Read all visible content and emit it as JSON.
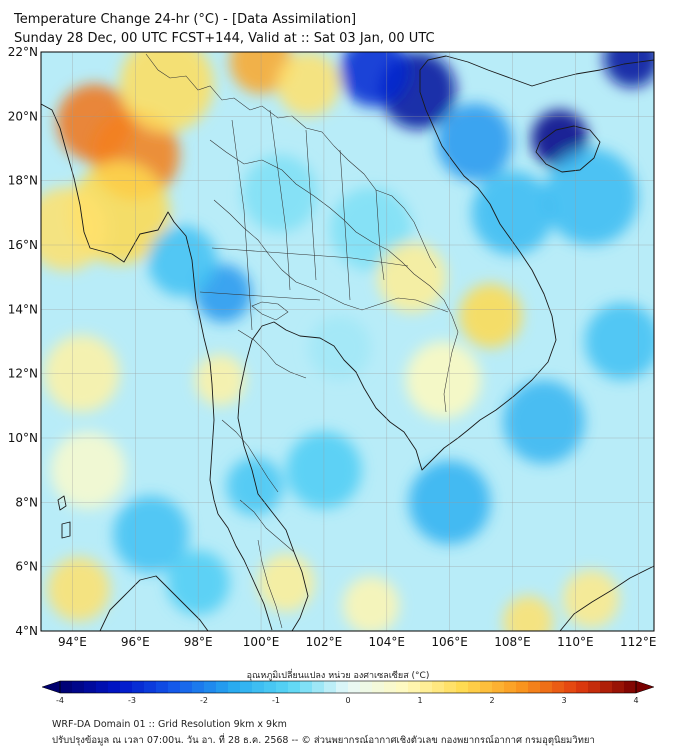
{
  "header": {
    "title_line1": "Temperature Change 24-hr (°C) - [Data Assimilation]",
    "title_line2": "Sunday 28 Dec, 00 UTC FCST+144, Valid at :: Sat 03 Jan, 00 UTC"
  },
  "map": {
    "lat_range": [
      4,
      22
    ],
    "lon_range": [
      93,
      112.5
    ],
    "lat_ticks": [
      4,
      6,
      8,
      10,
      12,
      14,
      16,
      18,
      20,
      22
    ],
    "lat_labels": [
      "4°N",
      "6°N",
      "8°N",
      "10°N",
      "12°N",
      "14°N",
      "16°N",
      "18°N",
      "20°N",
      "22°N"
    ],
    "lon_ticks": [
      94,
      96,
      98,
      100,
      102,
      104,
      106,
      108,
      110,
      112
    ],
    "lon_labels": [
      "94°E",
      "96°E",
      "98°E",
      "100°E",
      "102°E",
      "104°E",
      "106°E",
      "108°E",
      "110°E",
      "112°E"
    ],
    "field_anomalies": [
      {
        "lon": 94.7,
        "lat": 19.8,
        "value": 2.7,
        "spread": 1.2
      },
      {
        "lon": 96.0,
        "lat": 18.8,
        "value": 2.6,
        "spread": 1.4
      },
      {
        "lon": 95.5,
        "lat": 17.0,
        "value": 1.6,
        "spread": 1.6
      },
      {
        "lon": 97.0,
        "lat": 21.0,
        "value": 1.5,
        "spread": 1.5
      },
      {
        "lon": 100.0,
        "lat": 21.7,
        "value": 2.2,
        "spread": 1.0
      },
      {
        "lon": 101.5,
        "lat": 21.0,
        "value": 1.4,
        "spread": 1.0
      },
      {
        "lon": 93.8,
        "lat": 16.5,
        "value": 1.4,
        "spread": 1.3
      },
      {
        "lon": 105.0,
        "lat": 20.8,
        "value": -3.6,
        "spread": 1.2
      },
      {
        "lon": 103.6,
        "lat": 21.4,
        "value": -3.0,
        "spread": 1.1
      },
      {
        "lon": 109.5,
        "lat": 19.3,
        "value": -3.8,
        "spread": 0.9
      },
      {
        "lon": 111.8,
        "lat": 21.8,
        "value": -3.6,
        "spread": 0.9
      },
      {
        "lon": 106.8,
        "lat": 19.2,
        "value": -1.8,
        "spread": 1.2
      },
      {
        "lon": 108.0,
        "lat": 17.0,
        "value": -1.3,
        "spread": 1.3
      },
      {
        "lon": 110.5,
        "lat": 17.5,
        "value": -1.3,
        "spread": 1.5
      },
      {
        "lon": 98.8,
        "lat": 14.5,
        "value": -1.8,
        "spread": 0.9
      },
      {
        "lon": 97.5,
        "lat": 15.5,
        "value": -1.2,
        "spread": 1.1
      },
      {
        "lon": 100.6,
        "lat": 17.6,
        "value": -0.6,
        "spread": 1.2
      },
      {
        "lon": 103.5,
        "lat": 16.5,
        "value": -0.6,
        "spread": 1.3
      },
      {
        "lon": 104.8,
        "lat": 15.0,
        "value": 1.1,
        "spread": 1.1
      },
      {
        "lon": 107.3,
        "lat": 13.8,
        "value": 1.6,
        "spread": 1.0
      },
      {
        "lon": 105.8,
        "lat": 11.8,
        "value": 0.8,
        "spread": 1.2
      },
      {
        "lon": 98.7,
        "lat": 11.8,
        "value": 1.0,
        "spread": 0.8
      },
      {
        "lon": 94.3,
        "lat": 12.0,
        "value": 1.0,
        "spread": 1.2
      },
      {
        "lon": 94.5,
        "lat": 9.0,
        "value": 0.6,
        "spread": 1.2
      },
      {
        "lon": 94.2,
        "lat": 5.3,
        "value": 1.4,
        "spread": 1.0
      },
      {
        "lon": 96.5,
        "lat": 7.0,
        "value": -1.2,
        "spread": 1.2
      },
      {
        "lon": 98.0,
        "lat": 5.5,
        "value": -1.0,
        "spread": 1.0
      },
      {
        "lon": 100.8,
        "lat": 5.5,
        "value": 1.1,
        "spread": 0.9
      },
      {
        "lon": 103.5,
        "lat": 4.8,
        "value": 0.9,
        "spread": 0.9
      },
      {
        "lon": 108.5,
        "lat": 4.3,
        "value": 1.4,
        "spread": 0.8
      },
      {
        "lon": 110.5,
        "lat": 5.0,
        "value": 1.2,
        "spread": 0.9
      },
      {
        "lon": 106.0,
        "lat": 8.0,
        "value": -1.5,
        "spread": 1.3
      },
      {
        "lon": 109.0,
        "lat": 10.5,
        "value": -1.4,
        "spread": 1.3
      },
      {
        "lon": 111.5,
        "lat": 13.0,
        "value": -1.2,
        "spread": 1.2
      },
      {
        "lon": 102.0,
        "lat": 9.0,
        "value": -1.0,
        "spread": 1.2
      },
      {
        "lon": 99.8,
        "lat": 8.5,
        "value": -1.1,
        "spread": 0.9
      },
      {
        "lon": 102.5,
        "lat": 12.8,
        "value": -0.4,
        "spread": 1.0
      }
    ]
  },
  "colorbar": {
    "label": "อุณหภูมิเปลี่ยนแปลง หน่วย องศาเซลเซียส (°C)",
    "vmin": -4,
    "vmax": 4,
    "ticks": [
      -4,
      -3,
      -2,
      -1,
      0,
      1,
      2,
      3,
      4
    ],
    "tick_labels": [
      "-4",
      "-3",
      "-2",
      "-1",
      "0",
      "1",
      "2",
      "3",
      "4"
    ]
  },
  "footer": {
    "line1": "WRF-DA Domain 01 :: Grid Resolution 9km x 9km",
    "line2": "ปรับปรุงข้อมูล ณ เวลา 07:00น. วัน อา. ที่ 28 ธ.ค. 2568 -- © ส่วนพยากรณ์อากาศเชิงตัวเลข กองพยากรณ์อากาศ กรมอุตุนิยมวิทยา"
  }
}
